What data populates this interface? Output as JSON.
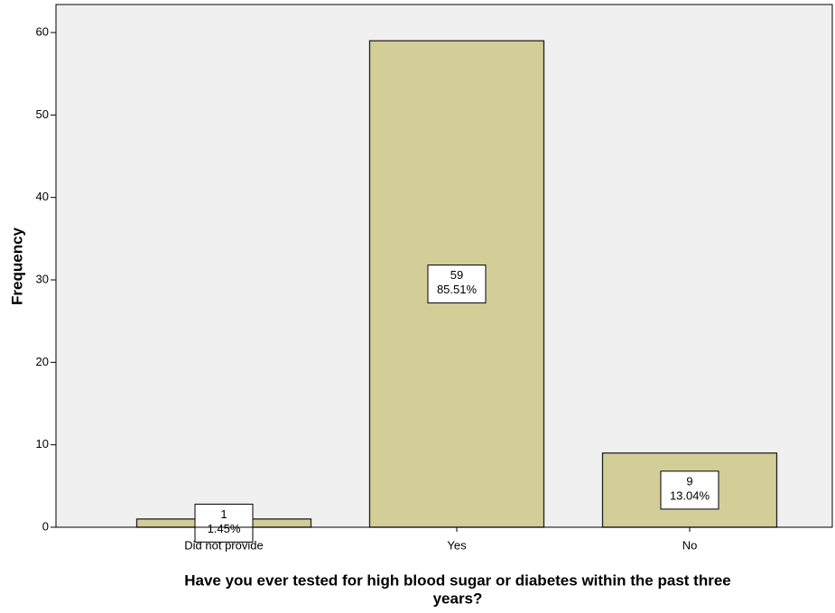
{
  "chart_data": {
    "type": "bar",
    "x_label_lines": [
      "Have you ever tested for high blood sugar or diabetes within the past three",
      "years?"
    ],
    "y_label": "Frequency",
    "categories": [
      "Did not provide",
      "Yes",
      "No"
    ],
    "values": [
      1,
      59,
      9
    ],
    "percent_labels": [
      "1.45%",
      "85.51%",
      "13.04%"
    ],
    "color": "#d3ce97",
    "ylim": [
      0,
      63.4
    ],
    "yticks": [
      0,
      10,
      20,
      30,
      40,
      50,
      60
    ]
  }
}
